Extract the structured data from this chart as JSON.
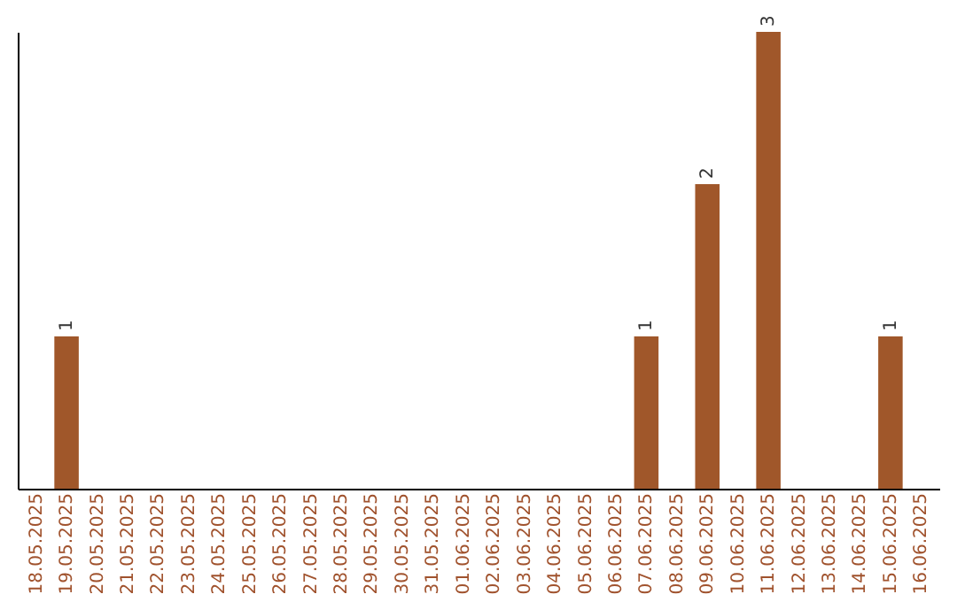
{
  "chart_data": {
    "type": "bar",
    "categories": [
      "18.05.2025",
      "19.05.2025",
      "20.05.2025",
      "21.05.2025",
      "22.05.2025",
      "23.05.2025",
      "24.05.2025",
      "25.05.2025",
      "26.05.2025",
      "27.05.2025",
      "28.05.2025",
      "29.05.2025",
      "30.05.2025",
      "31.05.2025",
      "01.06.2025",
      "02.06.2025",
      "03.06.2025",
      "04.06.2025",
      "05.06.2025",
      "06.06.2025",
      "07.06.2025",
      "08.06.2025",
      "09.06.2025",
      "10.06.2025",
      "11.06.2025",
      "12.06.2025",
      "13.06.2025",
      "14.06.2025",
      "15.06.2025",
      "16.06.2025"
    ],
    "values": [
      0,
      1,
      0,
      0,
      0,
      0,
      0,
      0,
      0,
      0,
      0,
      0,
      0,
      0,
      0,
      0,
      0,
      0,
      0,
      0,
      1,
      0,
      2,
      0,
      3,
      0,
      0,
      0,
      1,
      0
    ],
    "value_labels": [
      null,
      "1",
      null,
      null,
      null,
      null,
      null,
      null,
      null,
      null,
      null,
      null,
      null,
      null,
      null,
      null,
      null,
      null,
      null,
      null,
      "1",
      null,
      "2",
      null,
      "3",
      null,
      null,
      null,
      "1",
      null
    ],
    "color": "#a0572a",
    "grid": false,
    "tick_labels": "x"
  }
}
